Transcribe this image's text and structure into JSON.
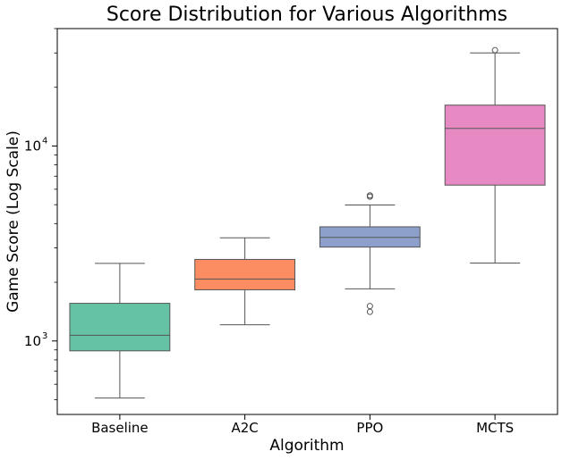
{
  "chart_data": {
    "type": "box",
    "title": "Score Distribution for Various Algorithms",
    "xlabel": "Algorithm",
    "ylabel": "Game Score (Log Scale)",
    "y_scale": "log",
    "ylim": [
      420,
      40000
    ],
    "y_ticks": [
      {
        "value": 1000,
        "base": "10",
        "exp": "3"
      },
      {
        "value": 10000,
        "base": "10",
        "exp": "4"
      }
    ],
    "grid": false,
    "categories": [
      "Baseline",
      "A2C",
      "PPO",
      "MCTS"
    ],
    "boxes": [
      {
        "category": "Baseline",
        "color": "#66c2a5",
        "whisker_low": 510,
        "q1": 890,
        "median": 1070,
        "q3": 1560,
        "whisker_high": 2500,
        "outliers": []
      },
      {
        "category": "A2C",
        "color": "#fc8d62",
        "whisker_low": 1210,
        "q1": 1830,
        "median": 2080,
        "q3": 2620,
        "whisker_high": 3380,
        "outliers": []
      },
      {
        "category": "PPO",
        "color": "#8da0cb",
        "whisker_low": 1850,
        "q1": 3030,
        "median": 3400,
        "q3": 3850,
        "whisker_high": 4980,
        "outliers": [
          1410,
          1510,
          5500,
          5580
        ]
      },
      {
        "category": "MCTS",
        "color": "#e78ac3",
        "whisker_low": 2510,
        "q1": 6300,
        "median": 12300,
        "q3": 16200,
        "whisker_high": 30000,
        "outliers": [
          31000
        ]
      }
    ]
  }
}
